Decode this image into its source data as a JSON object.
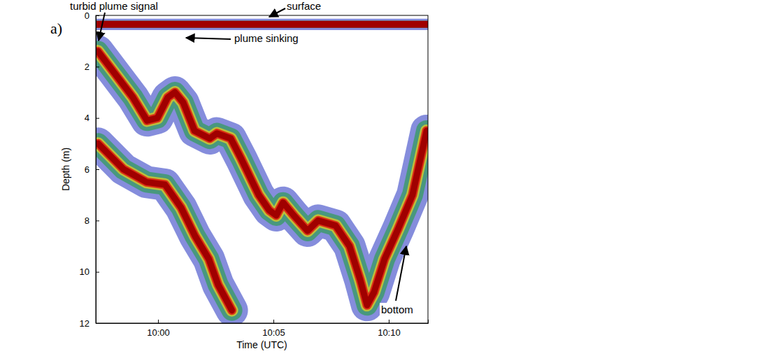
{
  "chart_data": {
    "type": "line",
    "panel_label": "a)",
    "x_label": "Time (UTC)",
    "y_label": "Depth (m)",
    "xlim": [
      597.3,
      611.7
    ],
    "xticks": [
      {
        "value": 600,
        "label": "10:00"
      },
      {
        "value": 605,
        "label": "10:05"
      },
      {
        "value": 610,
        "label": "10:10"
      }
    ],
    "ylim": [
      0,
      12
    ],
    "yticks": [
      0,
      2,
      4,
      6,
      8,
      10,
      12
    ],
    "annotations": [
      {
        "text": "turbid plume signal"
      },
      {
        "text": "surface"
      },
      {
        "text": "plume sinking"
      },
      {
        "text": "bottom"
      }
    ],
    "series": [
      {
        "color": "#a00000",
        "x": [
          597.3,
          611.7
        ],
        "values": [
          0.35,
          0.35
        ]
      },
      {
        "color": "#a00000",
        "x": [
          597.39,
          598.15,
          598.91,
          599.52,
          599.97,
          600.42,
          600.73,
          601.09,
          601.58,
          602.24,
          602.55,
          603.15,
          603.61,
          604.36,
          604.82,
          605.12,
          605.42,
          605.88,
          606.48,
          606.94,
          607.7,
          608.3,
          608.76,
          609.06,
          609.36,
          609.82,
          610.42,
          611.03,
          611.64
        ],
        "values": [
          1.4,
          2.3,
          3.2,
          4.1,
          4.0,
          3.2,
          3.0,
          3.4,
          4.5,
          4.8,
          4.6,
          4.8,
          5.6,
          7.0,
          7.6,
          7.8,
          7.3,
          7.8,
          8.4,
          8.0,
          8.2,
          9.0,
          10.3,
          11.3,
          10.8,
          9.5,
          8.3,
          7.0,
          4.5
        ]
      },
      {
        "color": "#a00000",
        "x": [
          597.4,
          598.5,
          599.5,
          600.3,
          601.0,
          601.6,
          602.2,
          602.6,
          603.2
        ],
        "values": [
          5.0,
          6.0,
          6.5,
          6.6,
          7.5,
          8.6,
          9.5,
          10.5,
          11.5
        ]
      }
    ]
  }
}
